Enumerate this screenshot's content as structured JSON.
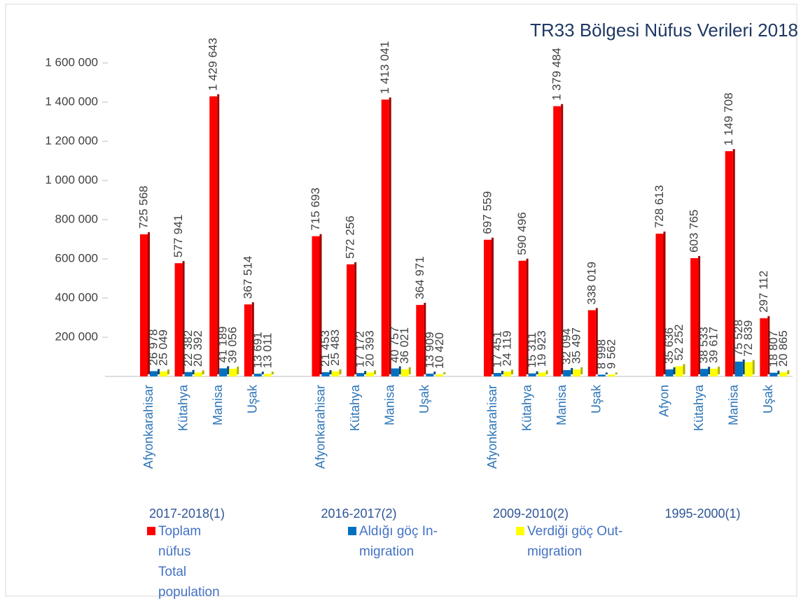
{
  "chart_data": {
    "type": "bar",
    "title": "TR33 Bölgesi Nüfus Verileri 2018",
    "groups": [
      {
        "name": "2017-2018(1)",
        "categories": [
          "Afyonkarahisar",
          "Kütahya",
          "Manisa",
          "Uşak"
        ]
      },
      {
        "name": "2016-2017(2)",
        "categories": [
          "Afyonkarahisar",
          "Kütahya",
          "Manisa",
          "Uşak"
        ]
      },
      {
        "name": "2009-2010(2)",
        "categories": [
          "Afyonkarahisar",
          "Kütahya",
          "Manisa",
          "Uşak"
        ]
      },
      {
        "name": "1995-2000(1)",
        "categories": [
          "Afyon",
          "Kütahya",
          "Manisa",
          "Uşak"
        ]
      }
    ],
    "series": [
      {
        "name": "Toplam nüfus Total population",
        "color": "#ff0000",
        "values": [
          725568,
          577941,
          1429643,
          367514,
          715693,
          572256,
          1413041,
          364971,
          697559,
          590496,
          1379484,
          338019,
          728613,
          603765,
          1149708,
          297112
        ],
        "value_labels": [
          "725 568",
          "577 941",
          "1 429 643",
          "367 514",
          "715 693",
          "572 256",
          "1 413 041",
          "364 971",
          "697 559",
          "590 496",
          "1 379 484",
          "338 019",
          "728 613",
          "603 765",
          "1 149 708",
          "297 112"
        ]
      },
      {
        "name": "Aldığı göç In-migration",
        "color": "#0070c0",
        "values": [
          26978,
          22382,
          41189,
          13691,
          21453,
          17172,
          40757,
          13909,
          17451,
          15311,
          32094,
          8998,
          35636,
          38533,
          75528,
          18807
        ],
        "value_labels": [
          "26 978",
          "22 382",
          "41 189",
          "13 691",
          "21 453",
          "17 172",
          "40 757",
          "13 909",
          "17 451",
          "15 311",
          "32 094",
          "8 998",
          "35 636",
          "38 533",
          "75 528",
          "18 807"
        ]
      },
      {
        "name": "Verdiği göç Out-migration",
        "color": "#ffff00",
        "values": [
          25049,
          20392,
          39056,
          13011,
          25483,
          20393,
          36021,
          10420,
          24119,
          19923,
          35497,
          9562,
          52252,
          39617,
          72839,
          20865
        ],
        "value_labels": [
          "25 049",
          "20 392",
          "39 056",
          "13 011",
          "25 483",
          "20 393",
          "36 021",
          "10 420",
          "24 119",
          "19 923",
          "35 497",
          "9 562",
          "52 252",
          "39 617",
          "72 839",
          "20 865"
        ]
      }
    ],
    "ylim": [
      0,
      1800000
    ],
    "yticks": [
      {
        "value": 200000,
        "label": "200 000"
      },
      {
        "value": 400000,
        "label": "400 000"
      },
      {
        "value": 600000,
        "label": "600 000"
      },
      {
        "value": 800000,
        "label": "800 000"
      },
      {
        "value": 1000000,
        "label": "1 000 000"
      },
      {
        "value": 1200000,
        "label": "1 200 000"
      },
      {
        "value": 1400000,
        "label": "1 400 000"
      },
      {
        "value": 1600000,
        "label": "1 600 000"
      }
    ],
    "grid": true
  }
}
